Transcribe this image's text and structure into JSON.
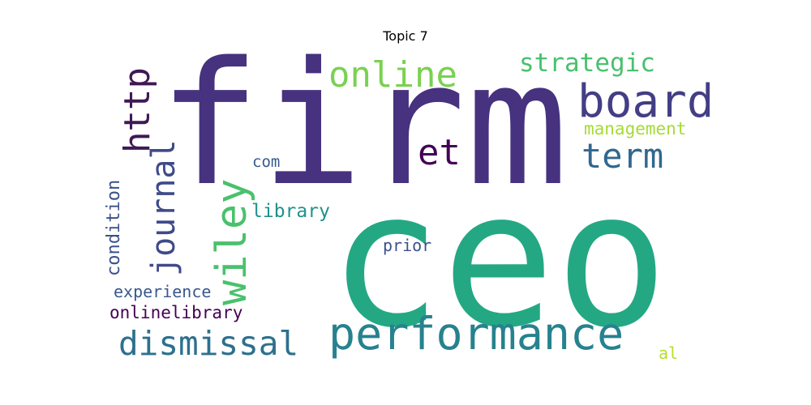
{
  "title": "Topic 7",
  "words": [
    {
      "text": "firm",
      "color": "#46327e"
    },
    {
      "text": "ceo",
      "color": "#24a884"
    },
    {
      "text": "performance",
      "color": "#26828e"
    },
    {
      "text": "board",
      "color": "#433e85"
    },
    {
      "text": "online",
      "color": "#7ad151"
    },
    {
      "text": "strategic",
      "color": "#48c16e"
    },
    {
      "text": "http",
      "color": "#3f1954"
    },
    {
      "text": "journal",
      "color": "#3e4a89"
    },
    {
      "text": "wiley",
      "color": "#4ac16d"
    },
    {
      "text": "et",
      "color": "#440154"
    },
    {
      "text": "term",
      "color": "#31688e"
    },
    {
      "text": "management",
      "color": "#a5db36"
    },
    {
      "text": "dismissal",
      "color": "#2d708e"
    },
    {
      "text": "com",
      "color": "#375a8c"
    },
    {
      "text": "library",
      "color": "#21918c"
    },
    {
      "text": "condition",
      "color": "#3b528b"
    },
    {
      "text": "prior",
      "color": "#3b528b"
    },
    {
      "text": "experience",
      "color": "#38598c"
    },
    {
      "text": "onlinelibrary",
      "color": "#440154"
    },
    {
      "text": "al",
      "color": "#b5de2b"
    }
  ]
}
